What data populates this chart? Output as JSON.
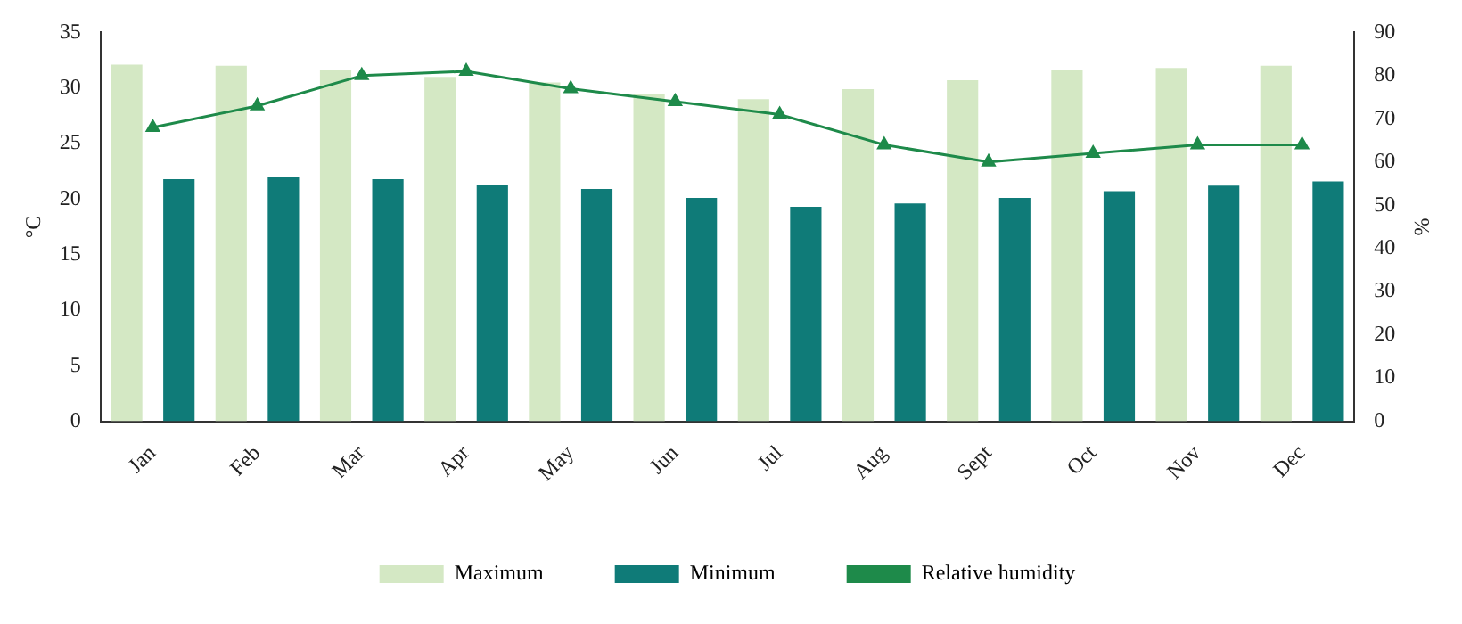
{
  "chart_data": {
    "type": "bar",
    "ylabel": "°C",
    "y2label": "%",
    "categories": [
      "Jan",
      "Feb",
      "Mar",
      "Apr",
      "May",
      "Jun",
      "Jul",
      "Aug",
      "Sept",
      "Oct",
      "Nov",
      "Dec"
    ],
    "series": [
      {
        "name": "Maximum",
        "color": "#d4e8c4",
        "values": [
          32.1,
          32.0,
          31.6,
          31.0,
          30.5,
          29.5,
          29.0,
          29.9,
          30.7,
          31.6,
          31.8,
          32.0
        ]
      },
      {
        "name": "Minimum",
        "color": "#0f7b78",
        "values": [
          21.8,
          22.0,
          21.8,
          21.3,
          20.9,
          20.1,
          19.3,
          19.6,
          20.1,
          20.7,
          21.2,
          21.6
        ]
      },
      {
        "name": "Relative humidity",
        "type": "line",
        "axis": "y2",
        "color": "#1e8a4a",
        "values": [
          68,
          73,
          80,
          81,
          77,
          74,
          71,
          64,
          60,
          62,
          64,
          64
        ]
      }
    ],
    "ylim": [
      0,
      35
    ],
    "yticks": [
      0,
      5,
      10,
      15,
      20,
      25,
      30,
      35
    ],
    "y2lim": [
      0,
      90
    ],
    "y2ticks": [
      0,
      10,
      20,
      30,
      40,
      50,
      60,
      70,
      80,
      90
    ],
    "grid": false,
    "legend": "bottom",
    "marker": "triangle",
    "line_style": "solid"
  }
}
